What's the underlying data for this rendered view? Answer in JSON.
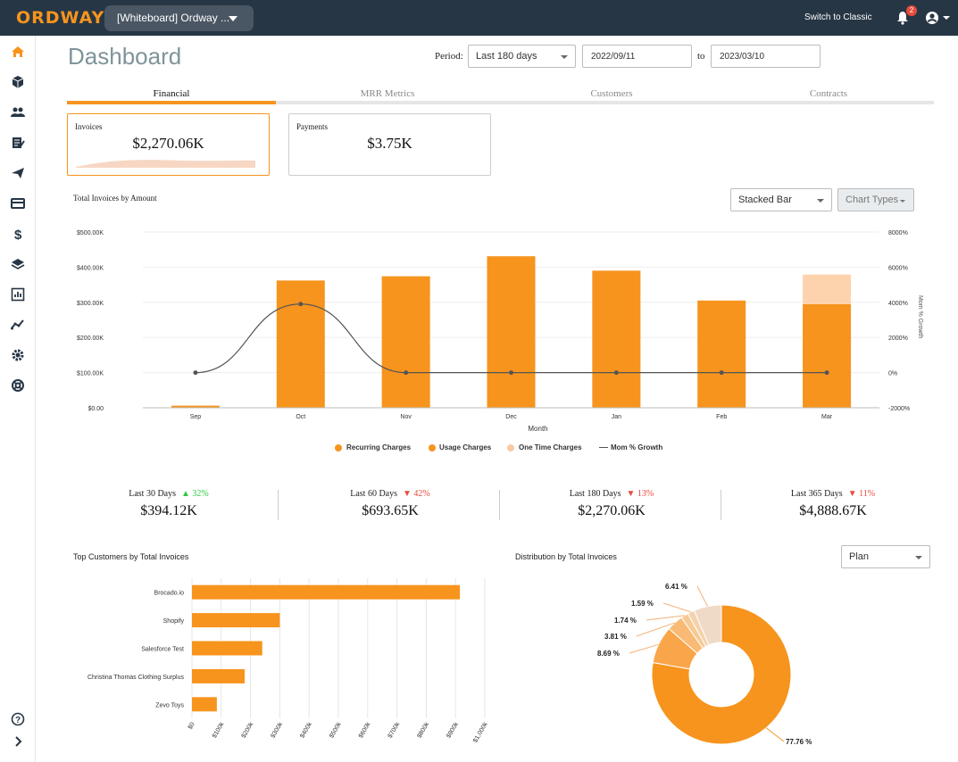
{
  "header": {
    "logo": "ORDWAY",
    "workspace": "[Whiteboard] Ordway ...",
    "switch_label": "Switch to Classic",
    "notifications": "2",
    "colors": {
      "bar": "#263645",
      "accent": "#f7941d"
    }
  },
  "sidebar": {
    "items": [
      "home-icon",
      "cube-icon",
      "customers-icon",
      "invoice-icon",
      "send-icon",
      "card-icon",
      "dollar-icon",
      "layers-icon",
      "report-icon",
      "trend-icon",
      "settings-icon",
      "support-icon"
    ],
    "bottom": [
      "help-icon",
      "expand-icon"
    ]
  },
  "page": {
    "title": "Dashboard",
    "period_label": "Period:",
    "period_value": "Last 180 days",
    "date_from": "2022/09/11",
    "to_label": "to",
    "date_to": "2023/03/10"
  },
  "tabs": [
    "Financial",
    "MRR Metrics",
    "Customers",
    "Contracts"
  ],
  "cards": {
    "invoices": {
      "label": "Invoices",
      "value": "$2,270.06K"
    },
    "payments": {
      "label": "Payments",
      "value": "$3.75K"
    }
  },
  "invoice_chart": {
    "section_title": "Total Invoices by Amount",
    "chart_type_select": "Stacked Bar",
    "chart_types_btn": "Chart Types",
    "y_ticks": [
      "$500.00K",
      "$400.00K",
      "$300.00K",
      "$200.00K",
      "$100.00K",
      "$0.00"
    ],
    "y2_ticks": [
      "8000%",
      "6000%",
      "4000%",
      "2000%",
      "0%",
      "-2000%"
    ],
    "y2_label": "Mom % Growth",
    "xlabel": "Month",
    "legend": [
      "Recurring Charges",
      "Usage Charges",
      "One Time Charges",
      "Mom % Growth"
    ]
  },
  "stats": [
    {
      "label": "Last 30 Days",
      "delta": "32%",
      "dir": "up",
      "value": "$394.12K"
    },
    {
      "label": "Last 60 Days",
      "delta": "42%",
      "dir": "down",
      "value": "$693.65K"
    },
    {
      "label": "Last 180 Days",
      "delta": "13%",
      "dir": "down",
      "value": "$2,270.06K"
    },
    {
      "label": "Last 365 Days",
      "delta": "11%",
      "dir": "down",
      "value": "$4,888.67K"
    }
  ],
  "top_customers": {
    "section_title": "Top Customers by Total Invoices"
  },
  "distribution": {
    "section_title": "Distribution by Total Invoices",
    "group_select": "Plan"
  },
  "chart_data": [
    {
      "type": "bar",
      "title": "Total Invoices by Amount",
      "xlabel": "Month",
      "ylabel": "",
      "categories": [
        "Sep",
        "Oct",
        "Nov",
        "Dec",
        "Jan",
        "Feb",
        "Mar"
      ],
      "ylim": [
        0,
        500
      ],
      "series": [
        {
          "name": "Recurring Charges",
          "values": [
            0,
            0,
            0,
            0,
            0,
            0,
            0
          ]
        },
        {
          "name": "Usage Charges",
          "values": [
            6,
            362,
            374,
            431,
            390,
            305,
            295
          ]
        },
        {
          "name": "One Time Charges",
          "values": [
            0,
            0,
            0,
            0,
            0,
            0,
            84
          ]
        },
        {
          "name": "Mom % Growth",
          "axis": "right",
          "values": [
            0,
            3900,
            0,
            0,
            0,
            0,
            0
          ]
        }
      ],
      "y2lim": [
        -2000,
        8000
      ]
    },
    {
      "type": "bar",
      "orientation": "horizontal",
      "title": "Top Customers by Total Invoices",
      "categories": [
        "Brocado.io",
        "Shopify",
        "Salesforce Test",
        "Christina Thomas Clothing Surplus",
        "Zevo Toys"
      ],
      "values": [
        915,
        300,
        240,
        180,
        85
      ],
      "xlim": [
        0,
        1000
      ],
      "x_ticks": [
        "$0",
        "$100k",
        "$200k",
        "$300k",
        "$400k",
        "$500k",
        "$600k",
        "$700k",
        "$800k",
        "$900k",
        "$1,000k"
      ]
    },
    {
      "type": "pie",
      "title": "Distribution by Total Invoices",
      "labels": [
        "77.76 %",
        "8.69 %",
        "3.81 %",
        "1.74 %",
        "1.59 %",
        "6.41 %"
      ],
      "values": [
        77.76,
        8.69,
        3.81,
        1.74,
        1.59,
        6.41
      ],
      "colors": [
        "#f7941d",
        "#f9a54a",
        "#f8ba74",
        "#f7c993",
        "#f4d2ab",
        "#efdac6"
      ]
    }
  ]
}
